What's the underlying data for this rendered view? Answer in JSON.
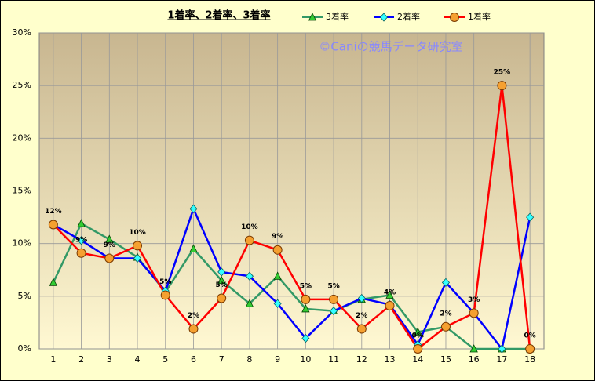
{
  "chart_data": {
    "type": "line",
    "title": "1着率、2着率、3着率",
    "annotation": "©Caniの競馬データ研究室",
    "categories": [
      "1",
      "2",
      "3",
      "4",
      "5",
      "6",
      "7",
      "8",
      "9",
      "10",
      "11",
      "12",
      "13",
      "14",
      "15",
      "16",
      "17",
      "18"
    ],
    "ylim": [
      0,
      30
    ],
    "yticks": [
      {
        "value": 0,
        "label": "0%"
      },
      {
        "value": 5,
        "label": "5%"
      },
      {
        "value": 10,
        "label": "10%"
      },
      {
        "value": 15,
        "label": "15%"
      },
      {
        "value": 20,
        "label": "20%"
      },
      {
        "value": 25,
        "label": "25%"
      },
      {
        "value": 30,
        "label": "30%"
      }
    ],
    "grid": true,
    "series": [
      {
        "name": "3着率",
        "color": "#339966",
        "marker": "triangle",
        "marker_color": "#33cc33",
        "values": [
          6.3,
          11.9,
          10.4,
          8.7,
          5.4,
          9.5,
          6.5,
          4.3,
          6.9,
          3.8,
          3.6,
          4.7,
          5.1,
          1.6,
          2.1,
          0,
          0,
          0
        ]
      },
      {
        "name": "2着率",
        "color": "#0000ff",
        "marker": "diamond",
        "marker_color": "#33ffff",
        "values": [
          11.8,
          10.3,
          8.6,
          8.6,
          5.5,
          13.3,
          7.3,
          6.9,
          4.3,
          1.0,
          3.6,
          4.8,
          4.2,
          0.4,
          6.3,
          3.4,
          0,
          12.5
        ]
      },
      {
        "name": "1着率",
        "color": "#ff0000",
        "marker": "circle",
        "marker_color": "#f5a030",
        "values": [
          11.8,
          9.1,
          8.6,
          9.8,
          5.1,
          1.9,
          4.8,
          10.3,
          9.4,
          4.7,
          4.7,
          1.9,
          4.1,
          0,
          2.1,
          3.4,
          25.0,
          0
        ],
        "value_labels": [
          "12%",
          "9%",
          "9%",
          "10%",
          "5%",
          "2%",
          "5%",
          "10%",
          "9%",
          "5%",
          "5%",
          "2%",
          "4%",
          "0%",
          "2%",
          "3%",
          "25%",
          "0%"
        ]
      }
    ]
  }
}
